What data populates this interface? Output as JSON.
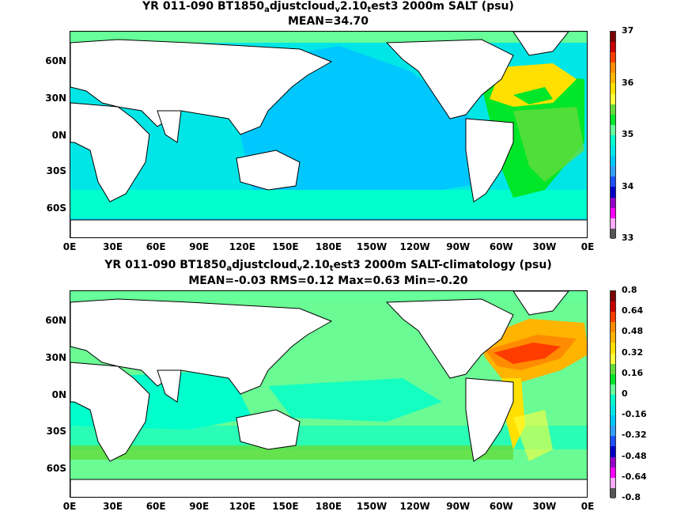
{
  "panels": [
    {
      "title_prefix": "YR 011-090 BT1850",
      "title_sub1": "a",
      "title_mid1": "djustcloud",
      "title_sub2": "v",
      "title_mid2": "2.10",
      "title_sub3": "t",
      "title_suffix": "est3 2000m SALT (psu)",
      "stats": "MEAN=34.70",
      "colorbar_labels": [
        "37",
        "36",
        "35",
        "34",
        "33"
      ],
      "colorbar_colors": [
        "#7b0000",
        "#c80000",
        "#ff3c00",
        "#ff8c00",
        "#ffb400",
        "#ffe000",
        "#ffff3c",
        "#64dc3c",
        "#00e628",
        "#66ff99",
        "#00ffcc",
        "#00e6e6",
        "#00c8ff",
        "#32a0ff",
        "#1e50ff",
        "#0000c8",
        "#9600c8",
        "#ff00ff",
        "#ffaaff",
        "#555555"
      ]
    },
    {
      "title_prefix": "YR 011-090 BT1850",
      "title_sub1": "a",
      "title_mid1": "djustcloud",
      "title_sub2": "v",
      "title_mid2": "2.10",
      "title_sub3": "t",
      "title_suffix": "est3 2000m SALT-climatology (psu)",
      "stats": "MEAN=-0.03   RMS=0.12   Max=0.63   Min=-0.20",
      "colorbar_labels": [
        "0.8",
        "0.64",
        "0.48",
        "0.32",
        "0.16",
        "0",
        "-0.16",
        "-0.32",
        "-0.48",
        "-0.64",
        "-0.8"
      ],
      "colorbar_colors": [
        "#7b0000",
        "#c80000",
        "#ff3c00",
        "#ff8c00",
        "#ffb400",
        "#ffe000",
        "#ffff3c",
        "#64dc3c",
        "#00e628",
        "#66ff99",
        "#00ffcc",
        "#00e6e6",
        "#00c8ff",
        "#32a0ff",
        "#1e50ff",
        "#0000c8",
        "#9600c8",
        "#ff00ff",
        "#ffaaff",
        "#555555"
      ]
    }
  ],
  "lat_labels": [
    "60N",
    "30N",
    "0N",
    "30S",
    "60S"
  ],
  "lon_labels": [
    "0E",
    "30E",
    "60E",
    "90E",
    "120E",
    "150E",
    "180E",
    "150W",
    "120W",
    "90W",
    "60W",
    "30W",
    "0E"
  ],
  "colors": {
    "land": "#ffffff",
    "coast": "#000000"
  }
}
